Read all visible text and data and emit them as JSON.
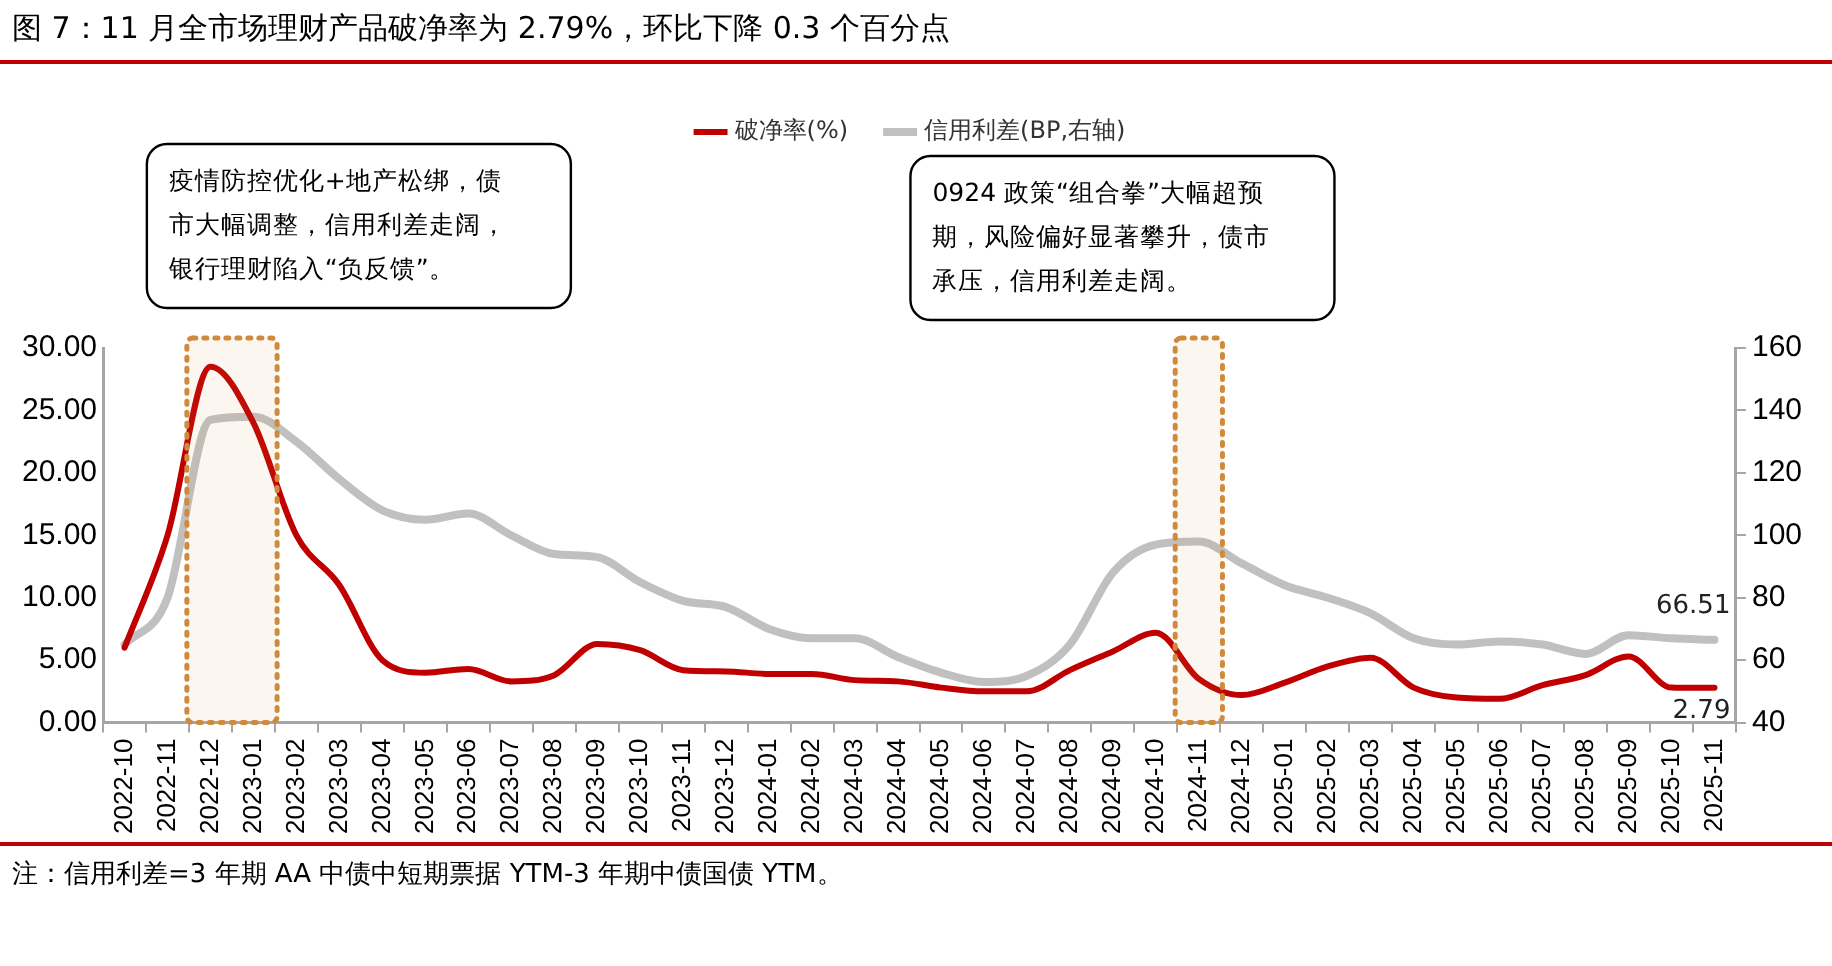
{
  "chart_data": {
    "type": "line",
    "title": "图 7：11 月全市场理财产品破净率为 2.79%，环比下降 0.3 个百分点",
    "categories": [
      "2022-10",
      "2022-11",
      "2022-12",
      "2023-01",
      "2023-02",
      "2023-03",
      "2023-04",
      "2023-05",
      "2023-06",
      "2023-07",
      "2023-08",
      "2023-09",
      "2023-10",
      "2023-11",
      "2023-12",
      "2024-01",
      "2024-02",
      "2024-03",
      "2024-04",
      "2024-05",
      "2024-06",
      "2024-07",
      "2024-08",
      "2024-09",
      "2024-10",
      "2024-11",
      "2024-12",
      "2025-01",
      "2025-02",
      "2025-03",
      "2025-04",
      "2025-05",
      "2025-06",
      "2025-07",
      "2025-08",
      "2025-09",
      "2025-10",
      "2025-11"
    ],
    "series": [
      {
        "name": "破净率(%)",
        "color": "#c00000",
        "values": [
          6,
          15,
          28.5,
          24,
          15,
          11,
          5,
          4,
          4.3,
          3.3,
          3.8,
          6.3,
          5.8,
          4.2,
          4.1,
          3.9,
          3.9,
          3.4,
          3.3,
          2.8,
          2.5,
          2.5,
          4.2,
          5.7,
          7.2,
          3.5,
          2.2,
          3.2,
          4.5,
          5.2,
          2.8,
          2,
          1.9,
          3,
          3.8,
          5.3,
          2.8,
          2.79
        ],
        "value_labels": [
          null,
          null,
          null,
          null,
          null,
          null,
          null,
          null,
          null,
          null,
          null,
          null,
          null,
          null,
          null,
          null,
          null,
          null,
          null,
          null,
          null,
          null,
          null,
          null,
          null,
          null,
          null,
          null,
          null,
          null,
          null,
          null,
          null,
          null,
          null,
          null,
          null,
          "2.79"
        ]
      },
      {
        "name": "信用利差(BP,右轴)",
        "color": "#c0c0c0",
        "axis": "y2",
        "values": [
          65,
          80,
          137,
          138,
          130,
          118,
          108,
          105,
          107,
          100,
          94,
          93,
          85,
          79,
          77,
          70,
          67,
          67,
          61,
          56,
          53,
          55,
          65,
          88,
          97,
          98,
          91,
          84,
          80,
          75,
          67,
          65,
          66,
          65,
          62,
          68,
          67,
          66.51
        ],
        "value_labels": [
          null,
          null,
          null,
          null,
          null,
          null,
          null,
          null,
          null,
          null,
          null,
          null,
          null,
          null,
          null,
          null,
          null,
          null,
          null,
          null,
          null,
          null,
          null,
          null,
          null,
          null,
          null,
          null,
          null,
          null,
          null,
          null,
          null,
          null,
          null,
          null,
          null,
          "66.51"
        ]
      }
    ],
    "ylim": [
      0,
      30
    ],
    "yticks": [
      {
        "value": 0,
        "label": "0.00"
      },
      {
        "value": 5,
        "label": "5.00"
      },
      {
        "value": 10,
        "label": "10.00"
      },
      {
        "value": 15,
        "label": "15.00"
      },
      {
        "value": 20,
        "label": "20.00"
      },
      {
        "value": 25,
        "label": "25.00"
      },
      {
        "value": 30,
        "label": "30.00"
      }
    ],
    "y2lim": [
      40,
      160
    ],
    "y2ticks": [
      40,
      60,
      80,
      100,
      120,
      140,
      160
    ],
    "bands": [
      {
        "axis": "x",
        "from": "2022-12",
        "to": "2023-01",
        "color": "#d08a3c",
        "label": "疫情防控优化+地产松绑，债市大幅调整，信用利差走阔，银行理财陷入“负反馈”。"
      },
      {
        "axis": "x",
        "from": "2024-11",
        "to": "2024-11",
        "color": "#d08a3c",
        "label": "0924 政策“组合拳”大幅超预期，风险偏好显著攀升，债市承压，信用利差走阔。"
      }
    ],
    "annotations": [
      "注：信用利差=3 年期 AA 中债中短期票据 YTM-3 年期中债国债 YTM。"
    ],
    "legend": "top",
    "grid": false,
    "marker": "none",
    "line_style": "solid"
  }
}
